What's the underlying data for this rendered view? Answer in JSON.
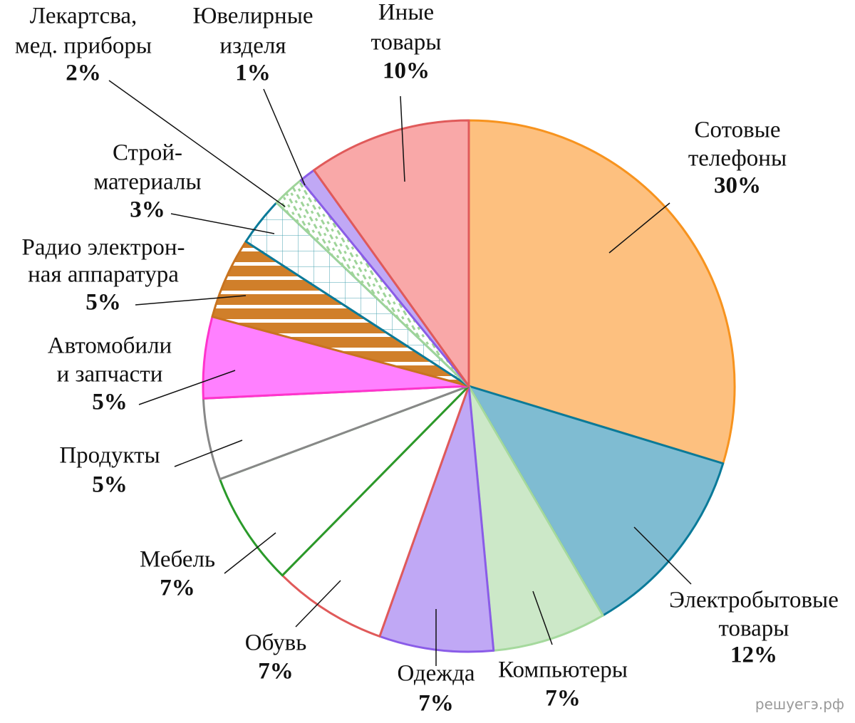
{
  "chart_data": {
    "type": "pie",
    "categories": [
      [
        "Сотовые",
        "телефоны"
      ],
      [
        "Электробытовые",
        "товары"
      ],
      [
        "Компьютеры"
      ],
      [
        "Одежда"
      ],
      [
        "Обувь"
      ],
      [
        "Мебель"
      ],
      [
        "Продукты"
      ],
      [
        "Автомобили",
        "и запчасти"
      ],
      [
        "Радио электрон-",
        "ная аппаратура"
      ],
      [
        "Строй-",
        "материалы"
      ],
      [
        "Лекартсва,",
        "мед. приборы"
      ],
      [
        "Ювелирные",
        "изделя"
      ],
      [
        "Иные",
        "товары"
      ]
    ],
    "values": [
      30,
      12,
      7,
      7,
      7,
      7,
      5,
      5,
      5,
      3,
      2,
      1,
      10
    ],
    "value_labels": [
      "30%",
      "12%",
      "7%",
      "7%",
      "7%",
      "7%",
      "5%",
      "5%",
      "5%",
      "3%",
      "2%",
      "1%",
      "10%"
    ],
    "colors": [
      "#fdc07f",
      "#7fbcd2",
      "#cce8c8",
      "#c0a8f5",
      "#ffffff",
      "#ffffff",
      "#ffffff",
      "#ff80ff",
      "url(#p-stripes)",
      "url(#p-grid)",
      "url(#p-dash)",
      "#c0a8f5",
      "#f9a8a8"
    ],
    "edge_colors": [
      "#f7931e",
      "#0a7a99",
      "#a5d99d",
      "#8a5ce8",
      "#e05a5a",
      "#2a9a2a",
      "#888888",
      "#ff33cc",
      "#c8731f",
      "#0a7a99",
      "#9fd49a",
      "#8a5ce8",
      "#e05a5a"
    ],
    "watermark": "решуегэ.рф"
  }
}
